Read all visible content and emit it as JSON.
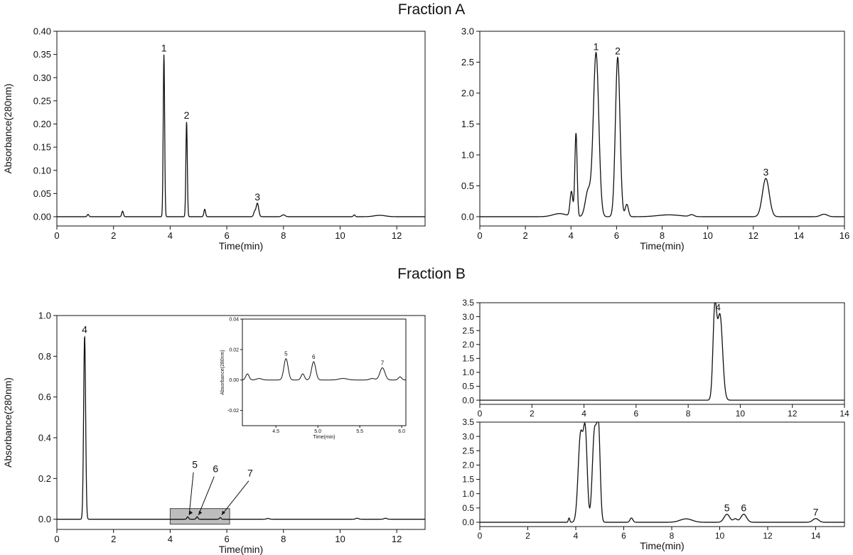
{
  "fraction_a_label": "Fraction A",
  "fraction_b_label": "Fraction B",
  "chart_data": [
    {
      "id": "a-left",
      "type": "line",
      "xlabel": "Time(min)",
      "ylabel": "Absorbance(280nm)",
      "xlim": [
        0,
        13
      ],
      "ylim": [
        -0.02,
        0.4
      ],
      "xticks": [
        0,
        2,
        4,
        6,
        8,
        10,
        12
      ],
      "yticks": [
        0.0,
        0.05,
        0.1,
        0.15,
        0.2,
        0.25,
        0.3,
        0.35,
        0.4
      ],
      "yticklabels": [
        "0.00",
        "0.05",
        "0.10",
        "0.15",
        "0.20",
        "0.25",
        "0.30",
        "0.35",
        "0.40"
      ],
      "baseline": 0.0,
      "peaks": [
        {
          "x": 1.1,
          "h": 0.005,
          "w": 0.03
        },
        {
          "x": 2.32,
          "h": 0.012,
          "w": 0.03
        },
        {
          "x": 3.78,
          "h": 0.35,
          "w": 0.025
        },
        {
          "x": 4.58,
          "h": 0.205,
          "w": 0.025
        },
        {
          "x": 5.22,
          "h": 0.016,
          "w": 0.03
        },
        {
          "x": 6.98,
          "h": 0.01,
          "w": 0.035
        },
        {
          "x": 7.08,
          "h": 0.029,
          "w": 0.045
        },
        {
          "x": 8.0,
          "h": 0.004,
          "w": 0.06
        },
        {
          "x": 10.5,
          "h": 0.004,
          "w": 0.03
        },
        {
          "x": 11.4,
          "h": 0.003,
          "w": 0.2
        }
      ],
      "annotations": [
        {
          "text": "1",
          "x": 3.78,
          "y": 0.35
        },
        {
          "text": "2",
          "x": 4.58,
          "y": 0.205
        },
        {
          "text": "3",
          "x": 7.08,
          "y": 0.029
        }
      ]
    },
    {
      "id": "a-right",
      "type": "line",
      "xlabel": "Time(min)",
      "ylabel": "",
      "xlim": [
        0,
        16
      ],
      "ylim": [
        -0.15,
        3.0
      ],
      "xticks": [
        0,
        2,
        4,
        6,
        8,
        10,
        12,
        14,
        16
      ],
      "yticks": [
        0.0,
        0.5,
        1.0,
        1.5,
        2.0,
        2.5,
        3.0
      ],
      "yticklabels": [
        "0.0",
        "0.5",
        "1.0",
        "1.5",
        "2.0",
        "2.5",
        "3.0"
      ],
      "baseline": 0.0,
      "peaks": [
        {
          "x": 3.5,
          "h": 0.05,
          "w": 0.3
        },
        {
          "x": 4.02,
          "h": 0.4,
          "w": 0.06
        },
        {
          "x": 4.22,
          "h": 1.35,
          "w": 0.05
        },
        {
          "x": 4.75,
          "h": 0.42,
          "w": 0.12
        },
        {
          "x": 5.1,
          "h": 2.65,
          "w": 0.12
        },
        {
          "x": 6.05,
          "h": 2.58,
          "w": 0.1
        },
        {
          "x": 6.45,
          "h": 0.2,
          "w": 0.07
        },
        {
          "x": 8.3,
          "h": 0.03,
          "w": 0.5
        },
        {
          "x": 9.3,
          "h": 0.03,
          "w": 0.1
        },
        {
          "x": 12.55,
          "h": 0.62,
          "w": 0.15
        },
        {
          "x": 15.1,
          "h": 0.04,
          "w": 0.15
        }
      ],
      "annotations": [
        {
          "text": "1",
          "x": 5.1,
          "y": 2.65
        },
        {
          "text": "2",
          "x": 6.05,
          "y": 2.58
        },
        {
          "text": "3",
          "x": 12.55,
          "y": 0.62
        }
      ]
    },
    {
      "id": "b-left",
      "type": "line",
      "xlabel": "Time(min)",
      "ylabel": "Absorbance(280nm)",
      "xlim": [
        0,
        13
      ],
      "ylim": [
        -0.05,
        1.0
      ],
      "xticks": [
        0,
        2,
        4,
        6,
        8,
        10,
        12
      ],
      "yticks": [
        0.0,
        0.2,
        0.4,
        0.6,
        0.8,
        1.0
      ],
      "yticklabels": [
        "0.0",
        "0.2",
        "0.4",
        "0.6",
        "0.8",
        "1.0"
      ],
      "baseline": 0.0,
      "peaks": [
        {
          "x": 0.98,
          "h": 0.9,
          "w": 0.035
        },
        {
          "x": 4.62,
          "h": 0.012,
          "w": 0.03
        },
        {
          "x": 4.95,
          "h": 0.012,
          "w": 0.03
        },
        {
          "x": 5.77,
          "h": 0.008,
          "w": 0.03
        },
        {
          "x": 7.45,
          "h": 0.004,
          "w": 0.05
        },
        {
          "x": 10.6,
          "h": 0.005,
          "w": 0.05
        },
        {
          "x": 11.6,
          "h": 0.005,
          "w": 0.05
        }
      ],
      "annotations": [
        {
          "text": "4",
          "x": 0.98,
          "y": 0.9
        }
      ],
      "callouts": [
        {
          "text": "5",
          "x": 4.62
        },
        {
          "text": "6",
          "x": 4.95
        },
        {
          "text": "7",
          "x": 5.77
        }
      ],
      "highlight_range": [
        4.0,
        6.1
      ]
    },
    {
      "id": "b-inset",
      "type": "line",
      "xlabel": "Time(min)",
      "ylabel": "Absorbance(280nm)",
      "xlim": [
        4.1,
        6.05
      ],
      "ylim": [
        -0.03,
        0.04
      ],
      "xticks": [
        4.5,
        5.0,
        5.5,
        6.0
      ],
      "xticklabels": [
        "4.5",
        "5.0",
        "5.5",
        "6.0"
      ],
      "yticks": [
        -0.02,
        0.0,
        0.02,
        0.04
      ],
      "yticklabels": [
        "-0.02",
        "0.00",
        "0.02",
        "0.04"
      ],
      "baseline": 0.0,
      "peaks": [
        {
          "x": 4.16,
          "h": 0.004,
          "w": 0.02
        },
        {
          "x": 4.3,
          "h": 0.001,
          "w": 0.03
        },
        {
          "x": 4.62,
          "h": 0.014,
          "w": 0.025
        },
        {
          "x": 4.82,
          "h": 0.004,
          "w": 0.02
        },
        {
          "x": 4.95,
          "h": 0.012,
          "w": 0.025
        },
        {
          "x": 5.3,
          "h": 0.001,
          "w": 0.05
        },
        {
          "x": 5.65,
          "h": 0.001,
          "w": 0.03
        },
        {
          "x": 5.77,
          "h": 0.008,
          "w": 0.03
        },
        {
          "x": 5.98,
          "h": 0.002,
          "w": 0.02
        }
      ],
      "annotations": [
        {
          "text": "5",
          "x": 4.62,
          "y": 0.014
        },
        {
          "text": "6",
          "x": 4.95,
          "y": 0.012
        },
        {
          "text": "7",
          "x": 5.77,
          "y": 0.008
        }
      ]
    },
    {
      "id": "b-right-top",
      "type": "line",
      "xlabel": "",
      "ylabel": "",
      "xlim": [
        0,
        14
      ],
      "ylim": [
        -0.15,
        3.5
      ],
      "xticks": [
        0,
        2,
        4,
        6,
        8,
        10,
        12,
        14
      ],
      "yticks": [
        0.0,
        0.5,
        1.0,
        1.5,
        2.0,
        2.5,
        3.0,
        3.5
      ],
      "yticklabels": [
        "0.0",
        "0.5",
        "1.0",
        "1.5",
        "2.0",
        "2.5",
        "3.0",
        "3.5"
      ],
      "baseline": 0.0,
      "peaks": [
        {
          "x": 9.02,
          "h": 3.1,
          "w": 0.07
        },
        {
          "x": 9.22,
          "h": 3.05,
          "w": 0.1
        }
      ],
      "annotations": [
        {
          "text": "4",
          "x": 9.15,
          "y": 3.12
        }
      ]
    },
    {
      "id": "b-right-bottom",
      "type": "line",
      "xlabel": "Time(min)",
      "ylabel": "",
      "xlim": [
        0,
        15.2
      ],
      "ylim": [
        -0.15,
        3.5
      ],
      "xticks": [
        0,
        2,
        4,
        6,
        8,
        10,
        12,
        14
      ],
      "yticks": [
        0.0,
        0.5,
        1.0,
        1.5,
        2.0,
        2.5,
        3.0,
        3.5
      ],
      "yticklabels": [
        "0.0",
        "0.5",
        "1.0",
        "1.5",
        "2.0",
        "2.5",
        "3.0",
        "3.5"
      ],
      "baseline": 0.0,
      "peaks": [
        {
          "x": 3.72,
          "h": 0.15,
          "w": 0.03
        },
        {
          "x": 4.2,
          "h": 3.05,
          "w": 0.1
        },
        {
          "x": 4.4,
          "h": 2.95,
          "w": 0.08
        },
        {
          "x": 4.78,
          "h": 3.15,
          "w": 0.09
        },
        {
          "x": 4.95,
          "h": 3.05,
          "w": 0.07
        },
        {
          "x": 6.32,
          "h": 0.15,
          "w": 0.06
        },
        {
          "x": 8.6,
          "h": 0.12,
          "w": 0.25
        },
        {
          "x": 10.3,
          "h": 0.28,
          "w": 0.12
        },
        {
          "x": 10.65,
          "h": 0.12,
          "w": 0.08
        },
        {
          "x": 11.0,
          "h": 0.28,
          "w": 0.12
        },
        {
          "x": 14.0,
          "h": 0.13,
          "w": 0.12
        }
      ],
      "annotations": [
        {
          "text": "5",
          "x": 10.3,
          "y": 0.28
        },
        {
          "text": "6",
          "x": 11.0,
          "y": 0.28
        },
        {
          "text": "7",
          "x": 14.0,
          "y": 0.13
        }
      ]
    }
  ]
}
